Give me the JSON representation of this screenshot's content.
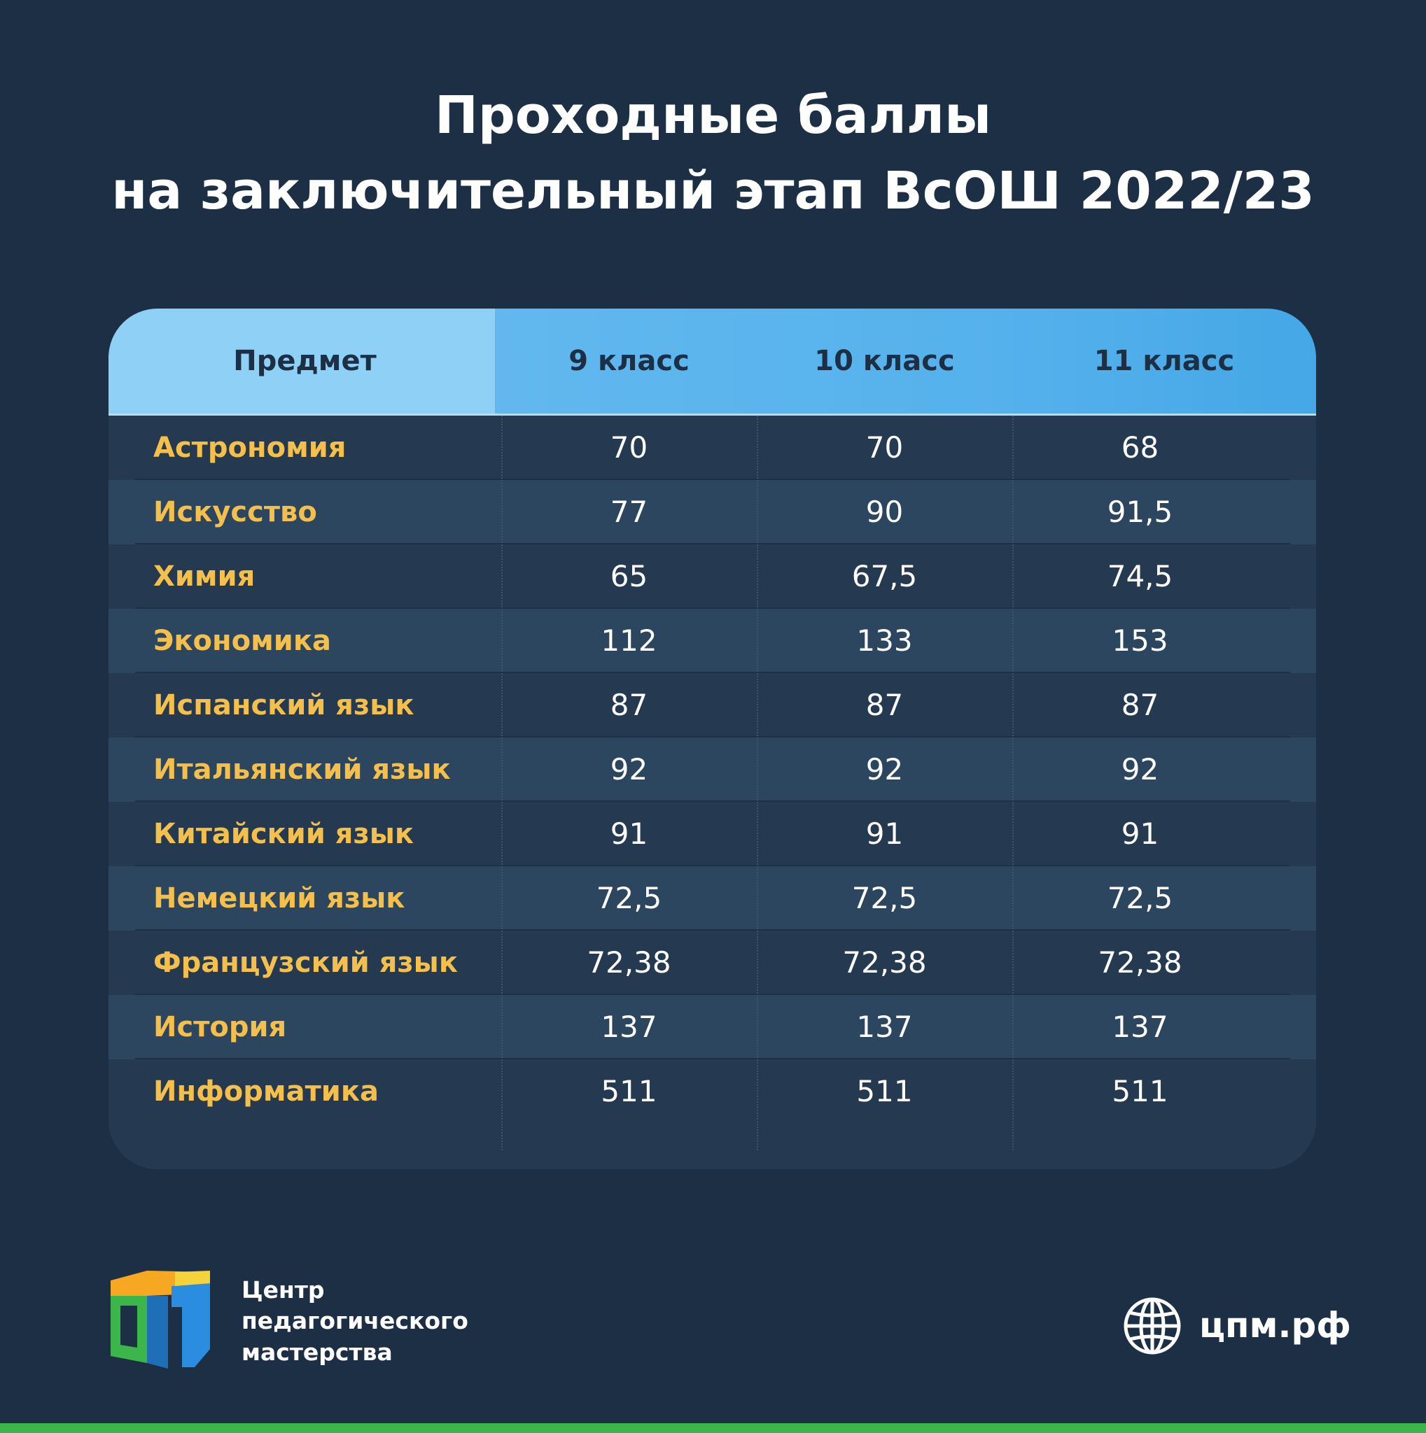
{
  "header": {
    "title": [
      "Проходные баллы",
      "на заключительный этап ВсОШ 2022/23"
    ]
  },
  "table": {
    "columns": [
      "Предмет",
      "9 класс",
      "10 класс",
      "11 класс"
    ],
    "rows": [
      [
        "Астрономия",
        "70",
        "70",
        "68"
      ],
      [
        "Искусство",
        "77",
        "90",
        "91,5"
      ],
      [
        "Химия",
        "65",
        "67,5",
        "74,5"
      ],
      [
        "Экономика",
        "112",
        "133",
        "153"
      ],
      [
        "Испанский язык",
        "87",
        "87",
        "87"
      ],
      [
        "Итальянский язык",
        "92",
        "92",
        "92"
      ],
      [
        "Китайский язык",
        "91",
        "91",
        "91"
      ],
      [
        "Немецкий язык",
        "72,5",
        "72,5",
        "72,5"
      ],
      [
        "Французский язык",
        "72,38",
        "72,38",
        "72,38"
      ],
      [
        "История",
        "137",
        "137",
        "137"
      ],
      [
        "Информатика",
        "511",
        "511",
        "511"
      ]
    ]
  },
  "footer": {
    "org": [
      "Центр",
      "педагогического",
      "мастерства"
    ],
    "site": "цпм.рф"
  }
}
